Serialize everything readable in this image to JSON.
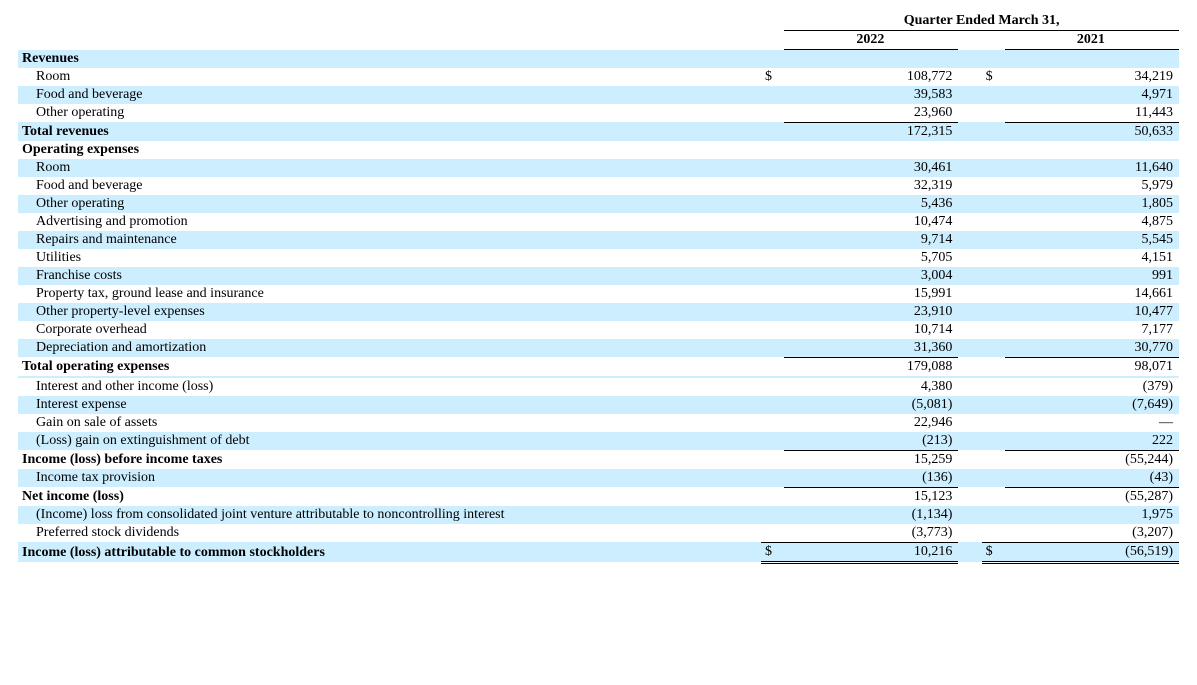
{
  "header": {
    "period": "Quarter Ended March 31,",
    "years": [
      "2022",
      "2021"
    ]
  },
  "colors": {
    "shade": "#cceeff",
    "rule": "#000000",
    "text": "#000000",
    "background": "#ffffff"
  },
  "typography": {
    "font_family": "Times New Roman",
    "base_font_size_pt": 10.5,
    "bold_weight": 700
  },
  "currency_symbol": "$",
  "rows": [
    {
      "label": "Revenues",
      "bold": true,
      "shade": true
    },
    {
      "label": "Room",
      "indent": 1,
      "v1": "108,772",
      "v2": "34,219",
      "cur": true
    },
    {
      "label": "Food and beverage",
      "indent": 1,
      "shade": true,
      "v1": "39,583",
      "v2": "4,971"
    },
    {
      "label": "Other operating",
      "indent": 1,
      "v1": "23,960",
      "v2": "11,443"
    },
    {
      "label": "Total revenues",
      "bold": true,
      "shade": true,
      "v1": "172,315",
      "v2": "50,633",
      "sumtop": true
    },
    {
      "label": "Operating expenses",
      "bold": true
    },
    {
      "label": "Room",
      "indent": 1,
      "shade": true,
      "v1": "30,461",
      "v2": "11,640"
    },
    {
      "label": "Food and beverage",
      "indent": 1,
      "v1": "32,319",
      "v2": "5,979"
    },
    {
      "label": "Other operating",
      "indent": 1,
      "shade": true,
      "v1": "5,436",
      "v2": "1,805"
    },
    {
      "label": "Advertising and promotion",
      "indent": 1,
      "v1": "10,474",
      "v2": "4,875"
    },
    {
      "label": "Repairs and maintenance",
      "indent": 1,
      "shade": true,
      "v1": "9,714",
      "v2": "5,545"
    },
    {
      "label": "Utilities",
      "indent": 1,
      "v1": "5,705",
      "v2": "4,151"
    },
    {
      "label": "Franchise costs",
      "indent": 1,
      "shade": true,
      "v1": "3,004",
      "v2": "991"
    },
    {
      "label": "Property tax, ground lease and insurance",
      "indent": 1,
      "v1": "15,991",
      "v2": "14,661"
    },
    {
      "label": "Other property-level expenses",
      "indent": 1,
      "shade": true,
      "v1": "23,910",
      "v2": "10,477"
    },
    {
      "label": "Corporate overhead",
      "indent": 1,
      "v1": "10,714",
      "v2": "7,177"
    },
    {
      "label": "Depreciation and amortization",
      "indent": 1,
      "shade": true,
      "v1": "31,360",
      "v2": "30,770"
    },
    {
      "label": "Total operating expenses",
      "bold": true,
      "v1": "179,088",
      "v2": "98,071",
      "sumtop": true
    },
    {
      "label": "",
      "shade": true
    },
    {
      "label": "Interest and other income (loss)",
      "indent": 1,
      "v1": "4,380",
      "v2": "(379)"
    },
    {
      "label": "Interest expense",
      "indent": 1,
      "shade": true,
      "v1": "(5,081)",
      "v2": "(7,649)"
    },
    {
      "label": "Gain on sale of assets",
      "indent": 1,
      "v1": "22,946",
      "v2": "—"
    },
    {
      "label": "(Loss) gain on extinguishment of debt",
      "indent": 1,
      "shade": true,
      "v1": "(213)",
      "v2": "222"
    },
    {
      "label": "Income (loss) before income taxes",
      "bold": true,
      "v1": "15,259",
      "v2": "(55,244)",
      "sumtop": true
    },
    {
      "label": "Income tax provision",
      "indent": 1,
      "shade": true,
      "v1": "(136)",
      "v2": "(43)"
    },
    {
      "label": "Net income (loss)",
      "bold": true,
      "v1": "15,123",
      "v2": "(55,287)",
      "sumtop": true
    },
    {
      "label": "(Income) loss from consolidated joint venture attributable to noncontrolling interest",
      "indent": 1,
      "shade": true,
      "v1": "(1,134)",
      "v2": "1,975"
    },
    {
      "label": "Preferred stock dividends",
      "indent": 1,
      "v1": "(3,773)",
      "v2": "(3,207)"
    },
    {
      "label": "Income (loss) attributable to common stockholders",
      "bold": true,
      "shade": true,
      "v1": "10,216",
      "v2": "(56,519)",
      "cur": true,
      "sumdouble": true
    }
  ]
}
